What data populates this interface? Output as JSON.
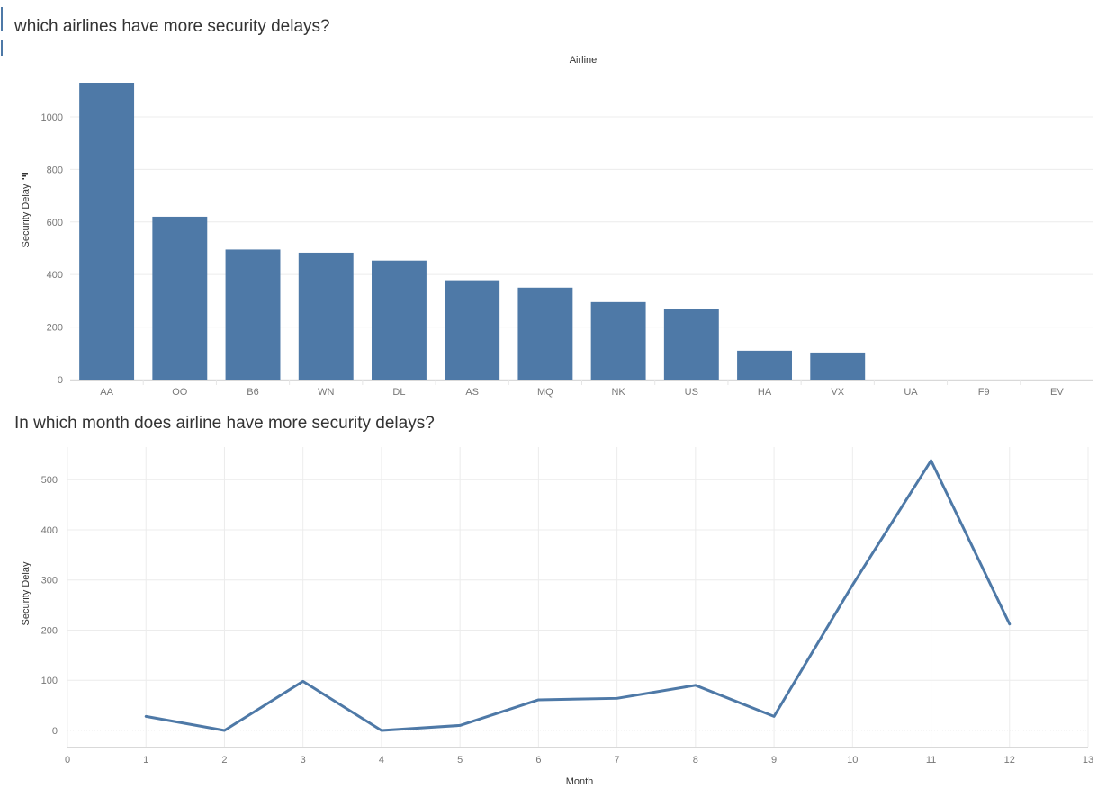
{
  "chart_data": [
    {
      "type": "bar",
      "title": "which airlines have more security delays?",
      "xlabel": "Airline",
      "ylabel": "Security Delay",
      "categories": [
        "AA",
        "OO",
        "B6",
        "WN",
        "DL",
        "AS",
        "MQ",
        "NK",
        "US",
        "HA",
        "VX",
        "UA",
        "F9",
        "EV"
      ],
      "values": [
        1130,
        620,
        495,
        483,
        453,
        378,
        350,
        295,
        268,
        110,
        103,
        0,
        0,
        0
      ],
      "ylim": [
        0,
        1130
      ],
      "yticks": [
        0,
        200,
        400,
        600,
        800,
        1000
      ],
      "color": "#4e79a7",
      "grid": true
    },
    {
      "type": "line",
      "title": "In which month does airline have more security delays?",
      "xlabel": "Month",
      "ylabel": "Security Delay",
      "x": [
        1,
        2,
        3,
        4,
        5,
        6,
        7,
        8,
        9,
        10,
        11,
        12
      ],
      "y": [
        28,
        0,
        98,
        0,
        10,
        61,
        64,
        90,
        28,
        290,
        538,
        212
      ],
      "xlim": [
        0,
        13
      ],
      "ylim": [
        0,
        538
      ],
      "xticks": [
        0,
        1,
        2,
        3,
        4,
        5,
        6,
        7,
        8,
        9,
        10,
        11,
        12,
        13
      ],
      "yticks": [
        0,
        100,
        200,
        300,
        400,
        500
      ],
      "color": "#4e79a7",
      "grid": true
    }
  ],
  "icons": {
    "corner": "sort-indicator-icon"
  }
}
